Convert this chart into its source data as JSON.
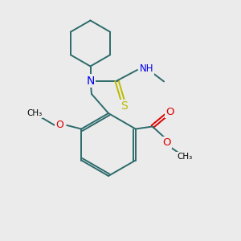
{
  "background_color": "#ebebeb",
  "bond_color": "#2d6b6b",
  "N_color": "#0000ee",
  "O_color": "#dd0000",
  "S_color": "#bbbb00",
  "line_width": 1.4,
  "figsize": [
    3.0,
    3.0
  ],
  "dpi": 100,
  "xlim": [
    0,
    10
  ],
  "ylim": [
    0,
    10
  ]
}
